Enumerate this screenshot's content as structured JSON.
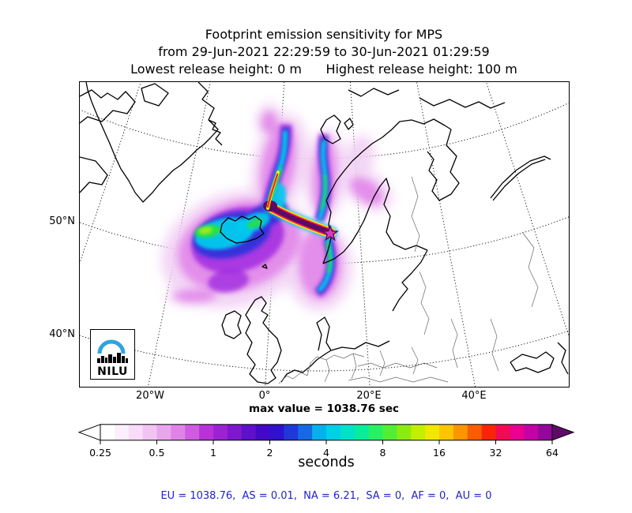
{
  "title": {
    "line1": "Footprint emission sensitivity for MPS",
    "line2": "from 29-Jun-2021 22:29:59 to 30-Jun-2021 01:29:59",
    "line3": "Lowest release height: 0 m      Highest release height: 100 m"
  },
  "map": {
    "y_labels": [
      "50°N",
      "40°N"
    ],
    "x_labels": [
      "20°W",
      "0°",
      "20°E",
      "40°E"
    ],
    "max_value_label": "max value = 1038.76 sec",
    "logo_text": "NILU",
    "marker": "release-point-star"
  },
  "colorbar": {
    "ticks": [
      "0.25",
      "0.5",
      "1",
      "2",
      "4",
      "8",
      "16",
      "32",
      "64"
    ],
    "unit_label": "seconds",
    "left_arrow_color": "#ffffff",
    "right_arrow_color": "#5f0a68",
    "colors": [
      "#ffffff",
      "#fceffc",
      "#f8dcf8",
      "#f2c4f3",
      "#eaa6ec",
      "#df84e6",
      "#cf5ce0",
      "#b931d9",
      "#9c22d4",
      "#7d18cf",
      "#5e10ca",
      "#4309c6",
      "#2e12cc",
      "#2138d9",
      "#1569e6",
      "#06b0ec",
      "#00cfe8",
      "#00e2c8",
      "#09ec9b",
      "#27f065",
      "#52ee33",
      "#8aec12",
      "#c2ee00",
      "#f0e800",
      "#fdc500",
      "#fd9500",
      "#fb5c00",
      "#f72508",
      "#f20a52",
      "#e90090",
      "#c401a5",
      "#93079b"
    ]
  },
  "footer": {
    "text": "EU = 1038.76,  AS = 0.01,  NA = 6.21,  SA = 0,  AF = 0,  AU = 0",
    "color": "#2222cc"
  },
  "chart_data": {
    "type": "heatmap",
    "title": "Footprint emission sensitivity for MPS",
    "subtitle": "from 29-Jun-2021 22:29:59 to 30-Jun-2021 01:29:59",
    "release_heights_m": {
      "lowest": 0,
      "highest": 100
    },
    "projection": "polar stereographic over North Atlantic / Europe",
    "x_ticks": [
      "20°W",
      "0°",
      "20°E",
      "40°E"
    ],
    "y_ticks": [
      "50°N",
      "40°N"
    ],
    "colorbar": {
      "scale": "log2",
      "ticks": [
        0.25,
        0.5,
        1,
        2,
        4,
        8,
        16,
        32,
        64
      ],
      "unit": "seconds"
    },
    "max_value_sec": 1038.76,
    "regional_totals": {
      "EU": 1038.76,
      "AS": 0.01,
      "NA": 6.21,
      "SA": 0,
      "AF": 0,
      "AU": 0
    },
    "release_location": "star marker near the southern Norway coast",
    "plume_description": "dark-purple maximum band extending WNW from release star, curving north along east Greenland toward Svalbard; cyan/green lobes south of Iceland and along Norwegian coast; diffuse magenta envelope"
  }
}
